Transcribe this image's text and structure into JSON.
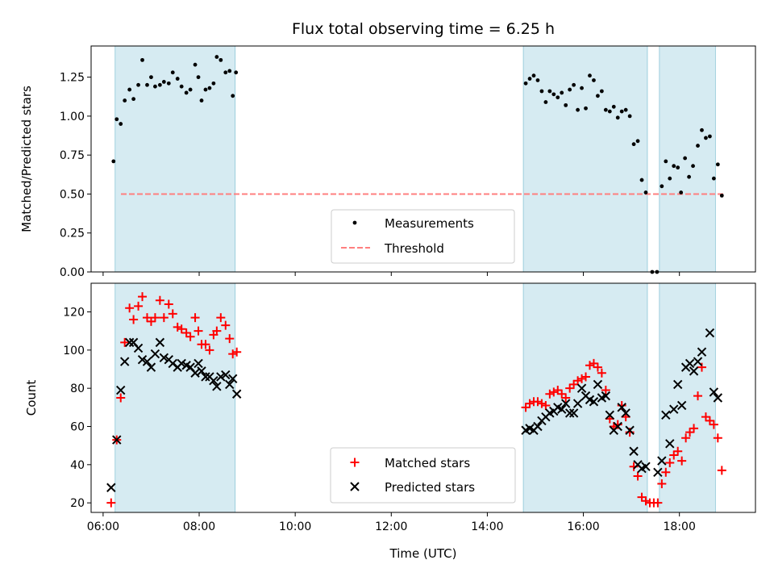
{
  "chart_data": [
    {
      "type": "scatter",
      "title": "Flux total observing time = 6.25 h",
      "xlabel": "",
      "ylabel": "Matched/Predicted stars",
      "x_unit": "hours (UTC)",
      "xlim": [
        "05:45",
        "19:35"
      ],
      "ylim": [
        0,
        1.45
      ],
      "yticks": [
        "0.00",
        "0.25",
        "0.50",
        "0.75",
        "1.00",
        "1.25"
      ],
      "legend_placement": "lower-center",
      "grid": false,
      "threshold": {
        "name": "Threshold",
        "value": 0.5,
        "color": "#ff7f7f"
      },
      "shaded_intervals": [
        [
          "06:15",
          "08:45"
        ],
        [
          "14:45",
          "17:20"
        ],
        [
          "17:35",
          "18:45"
        ]
      ],
      "series": [
        {
          "name": "Measurements",
          "color": "#000000",
          "marker": "dot",
          "points": [
            [
              "06:13",
              0.71
            ],
            [
              "06:17",
              0.98
            ],
            [
              "06:22",
              0.95
            ],
            [
              "06:27",
              1.1
            ],
            [
              "06:33",
              1.17
            ],
            [
              "06:38",
              1.11
            ],
            [
              "06:44",
              1.2
            ],
            [
              "06:49",
              1.36
            ],
            [
              "06:55",
              1.2
            ],
            [
              "07:00",
              1.25
            ],
            [
              "07:05",
              1.19
            ],
            [
              "07:11",
              1.2
            ],
            [
              "07:16",
              1.22
            ],
            [
              "07:22",
              1.21
            ],
            [
              "07:27",
              1.28
            ],
            [
              "07:33",
              1.24
            ],
            [
              "07:38",
              1.19
            ],
            [
              "07:44",
              1.15
            ],
            [
              "07:49",
              1.17
            ],
            [
              "07:55",
              1.33
            ],
            [
              "07:59",
              1.25
            ],
            [
              "08:03",
              1.1
            ],
            [
              "08:08",
              1.17
            ],
            [
              "08:13",
              1.18
            ],
            [
              "08:18",
              1.21
            ],
            [
              "08:22",
              1.38
            ],
            [
              "08:27",
              1.36
            ],
            [
              "08:33",
              1.28
            ],
            [
              "08:38",
              1.29
            ],
            [
              "08:42",
              1.13
            ],
            [
              "08:46",
              1.28
            ],
            [
              "14:48",
              1.21
            ],
            [
              "14:53",
              1.24
            ],
            [
              "14:58",
              1.26
            ],
            [
              "15:03",
              1.23
            ],
            [
              "15:08",
              1.16
            ],
            [
              "15:13",
              1.09
            ],
            [
              "15:18",
              1.16
            ],
            [
              "15:23",
              1.14
            ],
            [
              "15:28",
              1.12
            ],
            [
              "15:33",
              1.15
            ],
            [
              "15:38",
              1.07
            ],
            [
              "15:43",
              1.17
            ],
            [
              "15:48",
              1.2
            ],
            [
              "15:53",
              1.04
            ],
            [
              "15:58",
              1.18
            ],
            [
              "16:03",
              1.05
            ],
            [
              "16:08",
              1.26
            ],
            [
              "16:13",
              1.23
            ],
            [
              "16:18",
              1.13
            ],
            [
              "16:23",
              1.16
            ],
            [
              "16:28",
              1.04
            ],
            [
              "16:33",
              1.03
            ],
            [
              "16:38",
              1.06
            ],
            [
              "16:43",
              0.99
            ],
            [
              "16:48",
              1.03
            ],
            [
              "16:53",
              1.04
            ],
            [
              "16:58",
              1.0
            ],
            [
              "17:03",
              0.82
            ],
            [
              "17:08",
              0.84
            ],
            [
              "17:13",
              0.59
            ],
            [
              "17:18",
              0.51
            ],
            [
              "17:26",
              0.0
            ],
            [
              "17:32",
              0.0
            ],
            [
              "17:38",
              0.55
            ],
            [
              "17:43",
              0.71
            ],
            [
              "17:48",
              0.6
            ],
            [
              "17:53",
              0.68
            ],
            [
              "17:58",
              0.67
            ],
            [
              "18:02",
              0.51
            ],
            [
              "18:07",
              0.73
            ],
            [
              "18:12",
              0.61
            ],
            [
              "18:17",
              0.68
            ],
            [
              "18:23",
              0.81
            ],
            [
              "18:28",
              0.91
            ],
            [
              "18:33",
              0.86
            ],
            [
              "18:38",
              0.87
            ],
            [
              "18:43",
              0.6
            ],
            [
              "18:48",
              0.69
            ],
            [
              "18:53",
              0.49
            ]
          ]
        }
      ]
    },
    {
      "type": "scatter",
      "title": "",
      "xlabel": "Time (UTC)",
      "ylabel": "Count",
      "x_unit": "hours (UTC)",
      "xlim": [
        "05:45",
        "19:35"
      ],
      "ylim": [
        15,
        135
      ],
      "yticks": [
        "20",
        "40",
        "60",
        "80",
        "100",
        "120"
      ],
      "xticks": [
        "06:00",
        "08:00",
        "10:00",
        "12:00",
        "14:00",
        "16:00",
        "18:00"
      ],
      "legend_placement": "lower-center",
      "grid": false,
      "shaded_intervals": [
        [
          "06:15",
          "08:45"
        ],
        [
          "14:45",
          "17:20"
        ],
        [
          "17:35",
          "18:45"
        ]
      ],
      "series": [
        {
          "name": "Matched stars",
          "color": "#ff0000",
          "marker": "plus",
          "points": [
            [
              "06:10",
              20
            ],
            [
              "06:17",
              53
            ],
            [
              "06:22",
              75
            ],
            [
              "06:27",
              104
            ],
            [
              "06:33",
              122
            ],
            [
              "06:38",
              116
            ],
            [
              "06:44",
              123
            ],
            [
              "06:49",
              128
            ],
            [
              "06:55",
              117
            ],
            [
              "07:00",
              115
            ],
            [
              "07:05",
              117
            ],
            [
              "07:11",
              126
            ],
            [
              "07:16",
              117
            ],
            [
              "07:22",
              124
            ],
            [
              "07:27",
              119
            ],
            [
              "07:33",
              112
            ],
            [
              "07:38",
              111
            ],
            [
              "07:44",
              109
            ],
            [
              "07:49",
              107
            ],
            [
              "07:55",
              117
            ],
            [
              "07:59",
              110
            ],
            [
              "08:03",
              103
            ],
            [
              "08:08",
              103
            ],
            [
              "08:13",
              100
            ],
            [
              "08:18",
              108
            ],
            [
              "08:22",
              110
            ],
            [
              "08:27",
              117
            ],
            [
              "08:33",
              113
            ],
            [
              "08:38",
              106
            ],
            [
              "08:42",
              98
            ],
            [
              "08:47",
              99
            ],
            [
              "14:48",
              70
            ],
            [
              "14:53",
              72
            ],
            [
              "14:58",
              73
            ],
            [
              "15:03",
              73
            ],
            [
              "15:08",
              72
            ],
            [
              "15:13",
              71
            ],
            [
              "15:18",
              77
            ],
            [
              "15:23",
              78
            ],
            [
              "15:28",
              79
            ],
            [
              "15:33",
              77
            ],
            [
              "15:38",
              75
            ],
            [
              "15:43",
              80
            ],
            [
              "15:48",
              82
            ],
            [
              "15:53",
              84
            ],
            [
              "15:58",
              85
            ],
            [
              "16:03",
              86
            ],
            [
              "16:08",
              92
            ],
            [
              "16:13",
              93
            ],
            [
              "16:18",
              91
            ],
            [
              "16:23",
              88
            ],
            [
              "16:28",
              79
            ],
            [
              "16:33",
              64
            ],
            [
              "16:38",
              60
            ],
            [
              "16:43",
              61
            ],
            [
              "16:48",
              71
            ],
            [
              "16:53",
              65
            ],
            [
              "16:58",
              57
            ],
            [
              "17:03",
              39
            ],
            [
              "17:08",
              34
            ],
            [
              "17:13",
              23
            ],
            [
              "17:18",
              21
            ],
            [
              "17:23",
              20
            ],
            [
              "17:28",
              20
            ],
            [
              "17:33",
              20
            ],
            [
              "17:38",
              30
            ],
            [
              "17:43",
              36
            ],
            [
              "17:48",
              41
            ],
            [
              "17:53",
              45
            ],
            [
              "17:58",
              47
            ],
            [
              "18:03",
              42
            ],
            [
              "18:08",
              54
            ],
            [
              "18:13",
              57
            ],
            [
              "18:18",
              59
            ],
            [
              "18:23",
              76
            ],
            [
              "18:28",
              91
            ],
            [
              "18:33",
              65
            ],
            [
              "18:38",
              63
            ],
            [
              "18:43",
              61
            ],
            [
              "18:48",
              54
            ],
            [
              "18:53",
              37
            ]
          ]
        },
        {
          "name": "Predicted stars",
          "color": "#000000",
          "marker": "x",
          "points": [
            [
              "06:10",
              28
            ],
            [
              "06:17",
              53
            ],
            [
              "06:22",
              79
            ],
            [
              "06:27",
              94
            ],
            [
              "06:33",
              104
            ],
            [
              "06:38",
              104
            ],
            [
              "06:44",
              101
            ],
            [
              "06:49",
              95
            ],
            [
              "06:55",
              94
            ],
            [
              "07:00",
              91
            ],
            [
              "07:05",
              98
            ],
            [
              "07:11",
              104
            ],
            [
              "07:16",
              96
            ],
            [
              "07:22",
              95
            ],
            [
              "07:27",
              93
            ],
            [
              "07:33",
              91
            ],
            [
              "07:38",
              93
            ],
            [
              "07:44",
              92
            ],
            [
              "07:49",
              91
            ],
            [
              "07:55",
              88
            ],
            [
              "07:59",
              93
            ],
            [
              "08:03",
              89
            ],
            [
              "08:08",
              86
            ],
            [
              "08:13",
              86
            ],
            [
              "08:18",
              84
            ],
            [
              "08:22",
              81
            ],
            [
              "08:27",
              86
            ],
            [
              "08:33",
              87
            ],
            [
              "08:38",
              82
            ],
            [
              "08:42",
              85
            ],
            [
              "08:47",
              77
            ],
            [
              "14:48",
              58
            ],
            [
              "14:53",
              59
            ],
            [
              "14:58",
              58
            ],
            [
              "15:03",
              60
            ],
            [
              "15:08",
              63
            ],
            [
              "15:13",
              65
            ],
            [
              "15:18",
              67
            ],
            [
              "15:23",
              68
            ],
            [
              "15:28",
              70
            ],
            [
              "15:33",
              69
            ],
            [
              "15:38",
              72
            ],
            [
              "15:43",
              67
            ],
            [
              "15:48",
              67
            ],
            [
              "15:53",
              72
            ],
            [
              "15:58",
              80
            ],
            [
              "16:03",
              76
            ],
            [
              "16:08",
              74
            ],
            [
              "16:13",
              73
            ],
            [
              "16:18",
              82
            ],
            [
              "16:23",
              75
            ],
            [
              "16:28",
              76
            ],
            [
              "16:33",
              66
            ],
            [
              "16:38",
              58
            ],
            [
              "16:43",
              60
            ],
            [
              "16:48",
              70
            ],
            [
              "16:53",
              67
            ],
            [
              "16:58",
              58
            ],
            [
              "17:03",
              47
            ],
            [
              "17:08",
              40
            ],
            [
              "17:13",
              38
            ],
            [
              "17:18",
              39
            ],
            [
              "17:33",
              36
            ],
            [
              "17:38",
              42
            ],
            [
              "17:43",
              66
            ],
            [
              "17:48",
              51
            ],
            [
              "17:53",
              69
            ],
            [
              "17:58",
              82
            ],
            [
              "18:03",
              71
            ],
            [
              "18:08",
              91
            ],
            [
              "18:13",
              93
            ],
            [
              "18:18",
              89
            ],
            [
              "18:23",
              94
            ],
            [
              "18:28",
              99
            ],
            [
              "18:38",
              109
            ],
            [
              "18:43",
              78
            ],
            [
              "18:48",
              75
            ]
          ]
        }
      ]
    }
  ]
}
